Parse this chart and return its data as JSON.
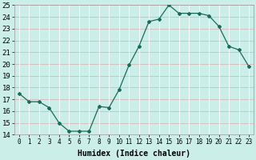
{
  "x": [
    0,
    1,
    2,
    3,
    4,
    5,
    6,
    7,
    8,
    9,
    10,
    11,
    12,
    13,
    14,
    15,
    16,
    17,
    18,
    19,
    20,
    21,
    22,
    23
  ],
  "y": [
    17.5,
    16.8,
    16.8,
    16.3,
    15.0,
    14.3,
    14.3,
    14.3,
    16.4,
    16.3,
    17.8,
    19.9,
    21.5,
    23.6,
    23.8,
    25.0,
    24.3,
    24.3,
    24.3,
    24.1,
    23.2,
    21.5,
    21.2,
    19.8
  ],
  "ylim": [
    14,
    25
  ],
  "xlim": [
    -0.5,
    23.5
  ],
  "yticks": [
    14,
    15,
    16,
    17,
    18,
    19,
    20,
    21,
    22,
    23,
    24,
    25
  ],
  "xticks": [
    0,
    1,
    2,
    3,
    4,
    5,
    6,
    7,
    8,
    9,
    10,
    11,
    12,
    13,
    14,
    15,
    16,
    17,
    18,
    19,
    20,
    21,
    22,
    23
  ],
  "xlabel": "Humidex (Indice chaleur)",
  "line_color": "#1a6b5a",
  "marker": "D",
  "marker_size": 2.0,
  "bg_color": "#cceee8",
  "grid_color_v": "#ffffff",
  "grid_color_h": "#d4b8b8",
  "xlabel_fontsize": 7,
  "ytick_fontsize": 6.5,
  "xtick_fontsize": 5.5
}
